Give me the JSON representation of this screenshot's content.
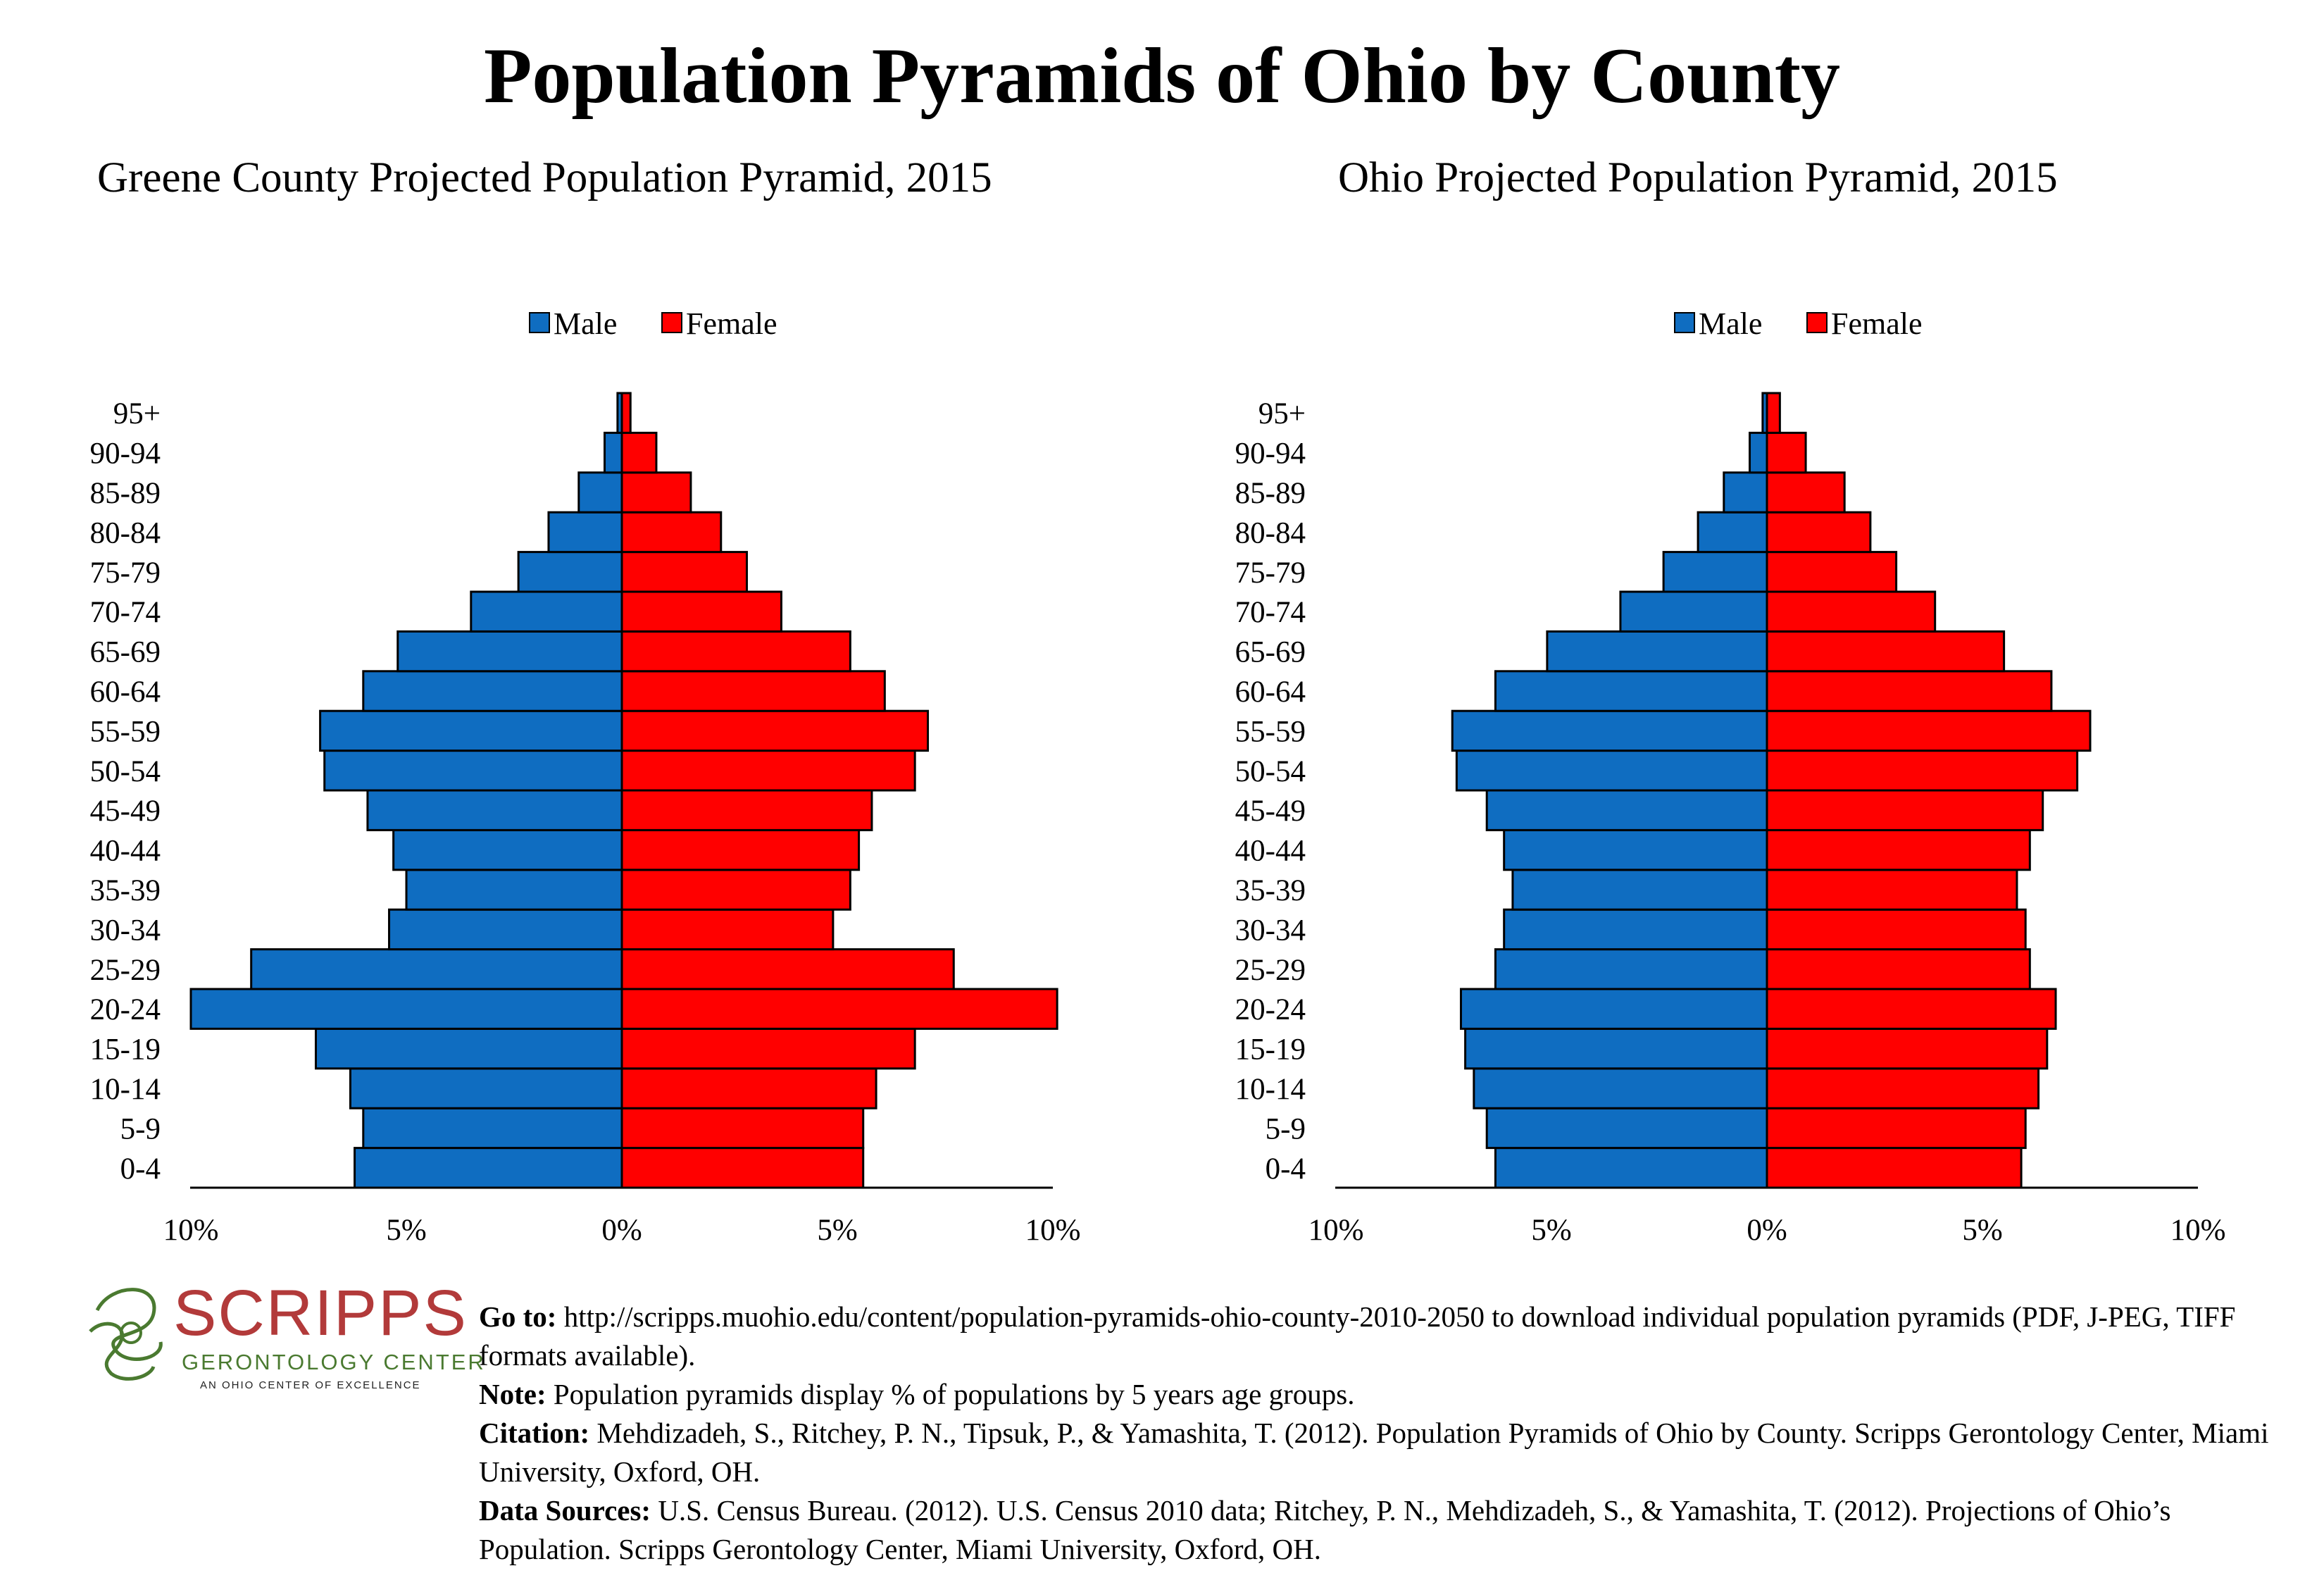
{
  "title": "Population Pyramids of Ohio by County",
  "colors": {
    "male": "#0f6dc1",
    "female": "#ff0000",
    "outline": "#000000"
  },
  "legend": {
    "male": "Male",
    "female": "Female"
  },
  "chart_data": [
    {
      "type": "bar",
      "orientation": "horizontal-pyramid",
      "title": "Greene County Projected Population Pyramid, 2015",
      "categories": [
        "0-4",
        "5-9",
        "10-14",
        "15-19",
        "20-24",
        "25-29",
        "30-34",
        "35-39",
        "40-44",
        "45-49",
        "50-54",
        "55-59",
        "60-64",
        "65-69",
        "70-74",
        "75-79",
        "80-84",
        "85-89",
        "90-94",
        "95+"
      ],
      "series": [
        {
          "name": "Male",
          "values": [
            6.2,
            6.0,
            6.3,
            7.1,
            10.0,
            8.6,
            5.4,
            5.0,
            5.3,
            5.9,
            6.9,
            7.0,
            6.0,
            5.2,
            3.5,
            2.4,
            1.7,
            1.0,
            0.4,
            0.1
          ]
        },
        {
          "name": "Female",
          "values": [
            5.6,
            5.6,
            5.9,
            6.8,
            10.1,
            7.7,
            4.9,
            5.3,
            5.5,
            5.8,
            6.8,
            7.1,
            6.1,
            5.3,
            3.7,
            2.9,
            2.3,
            1.6,
            0.8,
            0.2
          ]
        }
      ],
      "xlim": [
        -10,
        10
      ],
      "tick_labels": [
        "10%",
        "5%",
        "0%",
        "5%",
        "10%"
      ],
      "legend_position": "top"
    },
    {
      "type": "bar",
      "orientation": "horizontal-pyramid",
      "title": "Ohio Projected Population Pyramid, 2015",
      "categories": [
        "0-4",
        "5-9",
        "10-14",
        "15-19",
        "20-24",
        "25-29",
        "30-34",
        "35-39",
        "40-44",
        "45-49",
        "50-54",
        "55-59",
        "60-64",
        "65-69",
        "70-74",
        "75-79",
        "80-84",
        "85-89",
        "90-94",
        "95+"
      ],
      "series": [
        {
          "name": "Male",
          "values": [
            6.3,
            6.5,
            6.8,
            7.0,
            7.1,
            6.3,
            6.1,
            5.9,
            6.1,
            6.5,
            7.2,
            7.3,
            6.3,
            5.1,
            3.4,
            2.4,
            1.6,
            1.0,
            0.4,
            0.1
          ]
        },
        {
          "name": "Female",
          "values": [
            5.9,
            6.0,
            6.3,
            6.5,
            6.7,
            6.1,
            6.0,
            5.8,
            6.1,
            6.4,
            7.2,
            7.5,
            6.6,
            5.5,
            3.9,
            3.0,
            2.4,
            1.8,
            0.9,
            0.3
          ]
        }
      ],
      "xlim": [
        -10,
        10
      ],
      "tick_labels": [
        "10%",
        "5%",
        "0%",
        "5%",
        "10%"
      ],
      "legend_position": "top"
    }
  ],
  "logo": {
    "name": "SCRIPPS",
    "line2": "GERONTOLOGY CENTER",
    "line3": "AN OHIO CENTER OF EXCELLENCE"
  },
  "footnotes": {
    "goto_label": "Go to:",
    "goto_text": " http://scripps.muohio.edu/content/population-pyramids-ohio-county-2010-2050 to download individual population pyramids (PDF, J-PEG, TIFF formats available).",
    "note_label": "Note:",
    "note_text": " Population pyramids display % of populations by 5 years age groups.",
    "citation_label": "Citation:",
    "citation_text": " Mehdizadeh, S., Ritchey, P. N., Tipsuk, P., & Yamashita, T. (2012). Population Pyramids of Ohio by County. Scripps Gerontology Center, Miami University, Oxford, OH.",
    "sources_label": "Data Sources:",
    "sources_text": " U.S. Census Bureau. (2012). U.S. Census 2010 data; Ritchey, P. N., Mehdizadeh, S., & Yamashita, T. (2012). Projections of Ohio’s Population. Scripps Gerontology Center, Miami University, Oxford, OH."
  }
}
